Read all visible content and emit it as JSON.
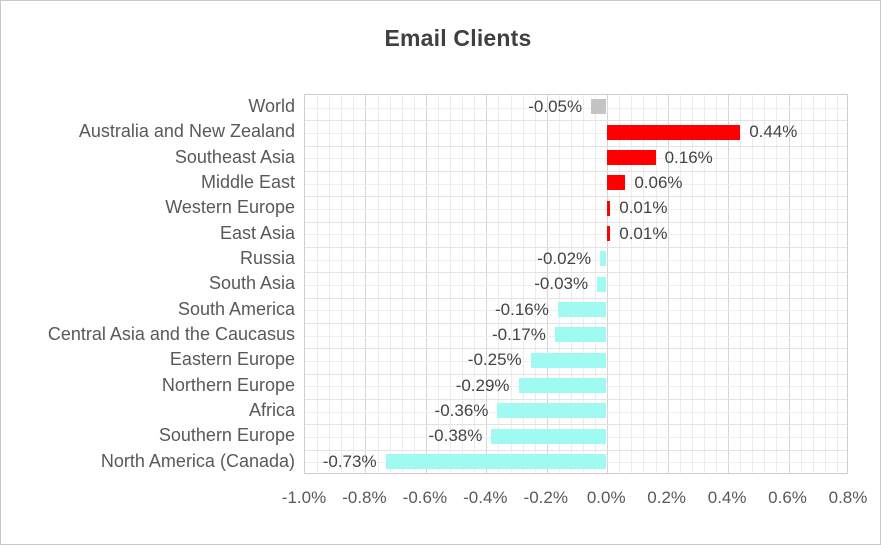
{
  "chart_data": {
    "type": "bar",
    "orientation": "horizontal",
    "title": "Email Clients",
    "unit": "%",
    "categories": [
      "World",
      "Australia and New Zealand",
      "Southeast Asia",
      "Middle East",
      "Western Europe",
      "East Asia",
      "Russia",
      "South Asia",
      "South America",
      "Central Asia and the Caucasus",
      "Eastern Europe",
      "Northern Europe",
      "Africa",
      "Southern Europe",
      "North America (Canada)"
    ],
    "values": [
      -0.05,
      0.44,
      0.16,
      0.06,
      0.01,
      0.01,
      -0.02,
      -0.03,
      -0.16,
      -0.17,
      -0.25,
      -0.29,
      -0.36,
      -0.38,
      -0.73
    ],
    "value_labels": [
      "-0.05%",
      "0.44%",
      "0.16%",
      "0.06%",
      "0.01%",
      "0.01%",
      "-0.02%",
      "-0.03%",
      "-0.16%",
      "-0.17%",
      "-0.25%",
      "-0.29%",
      "-0.36%",
      "-0.38%",
      "-0.73%"
    ],
    "bar_colors": [
      "#C4C4C4",
      "#FF0000",
      "#FF0000",
      "#FF0000",
      "#FF0000",
      "#FF0000",
      "#9FFAF2",
      "#9FFAF2",
      "#9FFAF2",
      "#9FFAF2",
      "#9FFAF2",
      "#9FFAF2",
      "#9FFAF2",
      "#9FFAF2",
      "#9FFAF2"
    ],
    "color_legend": {
      "world_total": "#C4C4C4",
      "positive_change": "#FF0000",
      "negative_change": "#9FFAF2"
    },
    "xlim": [
      -1.0,
      0.8
    ],
    "x_tick_labels": [
      "-1.0%",
      "-0.8%",
      "-0.6%",
      "-0.4%",
      "-0.2%",
      "0.0%",
      "0.2%",
      "0.4%",
      "0.6%",
      "0.8%"
    ],
    "x_tick_step": 0.2,
    "grid": "major and minor, both axes",
    "legend_position": "none"
  }
}
